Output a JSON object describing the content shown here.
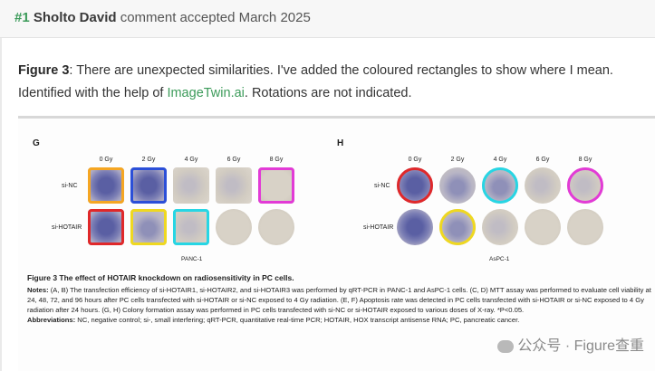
{
  "header": {
    "number": "#1",
    "author": "Sholto David",
    "status": "comment accepted March 2025"
  },
  "comment": {
    "label": "Figure 3",
    "text_before_link": ": There are unexpected similarities. I've added the coloured rectangles to show where I mean. Identified with the help of ",
    "link_text": "ImageTwin.ai",
    "text_after_link": ". Rotations are not indicated."
  },
  "figure": {
    "panel_g": {
      "letter": "G",
      "doses": [
        "0 Gy",
        "2 Gy",
        "4 Gy",
        "6 Gy",
        "8 Gy"
      ],
      "row_labels": [
        "si-NC",
        "si-HOTAIR"
      ],
      "subtitle": "PANC-1"
    },
    "panel_h": {
      "letter": "H",
      "doses": [
        "0 Gy",
        "2 Gy",
        "4 Gy",
        "6 Gy",
        "8 Gy"
      ],
      "row_labels": [
        "si-NC",
        "si-HOTAIR"
      ],
      "subtitle": "AsPC-1"
    },
    "caption": {
      "title": "Figure 3 The effect of HOTAIR knockdown on radiosensitivity in PC cells.",
      "notes_label": "Notes:",
      "notes": "(A, B) The transfection efficiency of si-HOTAIR1, si-HOTAIR2, and si-HOTAIR3 was performed by qRT-PCR in PANC-1 and AsPC-1 cells. (C, D) MTT assay was performed to evaluate cell viability at 24, 48, 72, and 96 hours after PC cells transfected with si-HOTAIR or si-NC exposed to 4 Gy radiation. (E, F) Apoptosis rate was detected in PC cells transfected with si-HOTAIR or si-NC exposed to 4 Gy radiation after 24 hours. (G, H) Colony formation assay was performed in PC cells transfected with si-NC or si-HOTAIR exposed to various doses of X-ray. *P<0.05.",
      "abbr_label": "Abbreviations:",
      "abbr": "NC, negative control; si-, small interfering; qRT-PCR, quantitative real-time PCR; HOTAIR, HOX transcript antisense RNA; PC, pancreatic cancer."
    },
    "watermark": "公众号 · Figure查重"
  },
  "colors": {
    "accent_green": "#3c9b5a",
    "highlight_orange": "#f5a623",
    "highlight_blue": "#2b4fd8",
    "highlight_magenta": "#e23bd6",
    "highlight_red": "#e0282a",
    "highlight_yellow": "#efd820",
    "highlight_cyan": "#27d6e4"
  }
}
